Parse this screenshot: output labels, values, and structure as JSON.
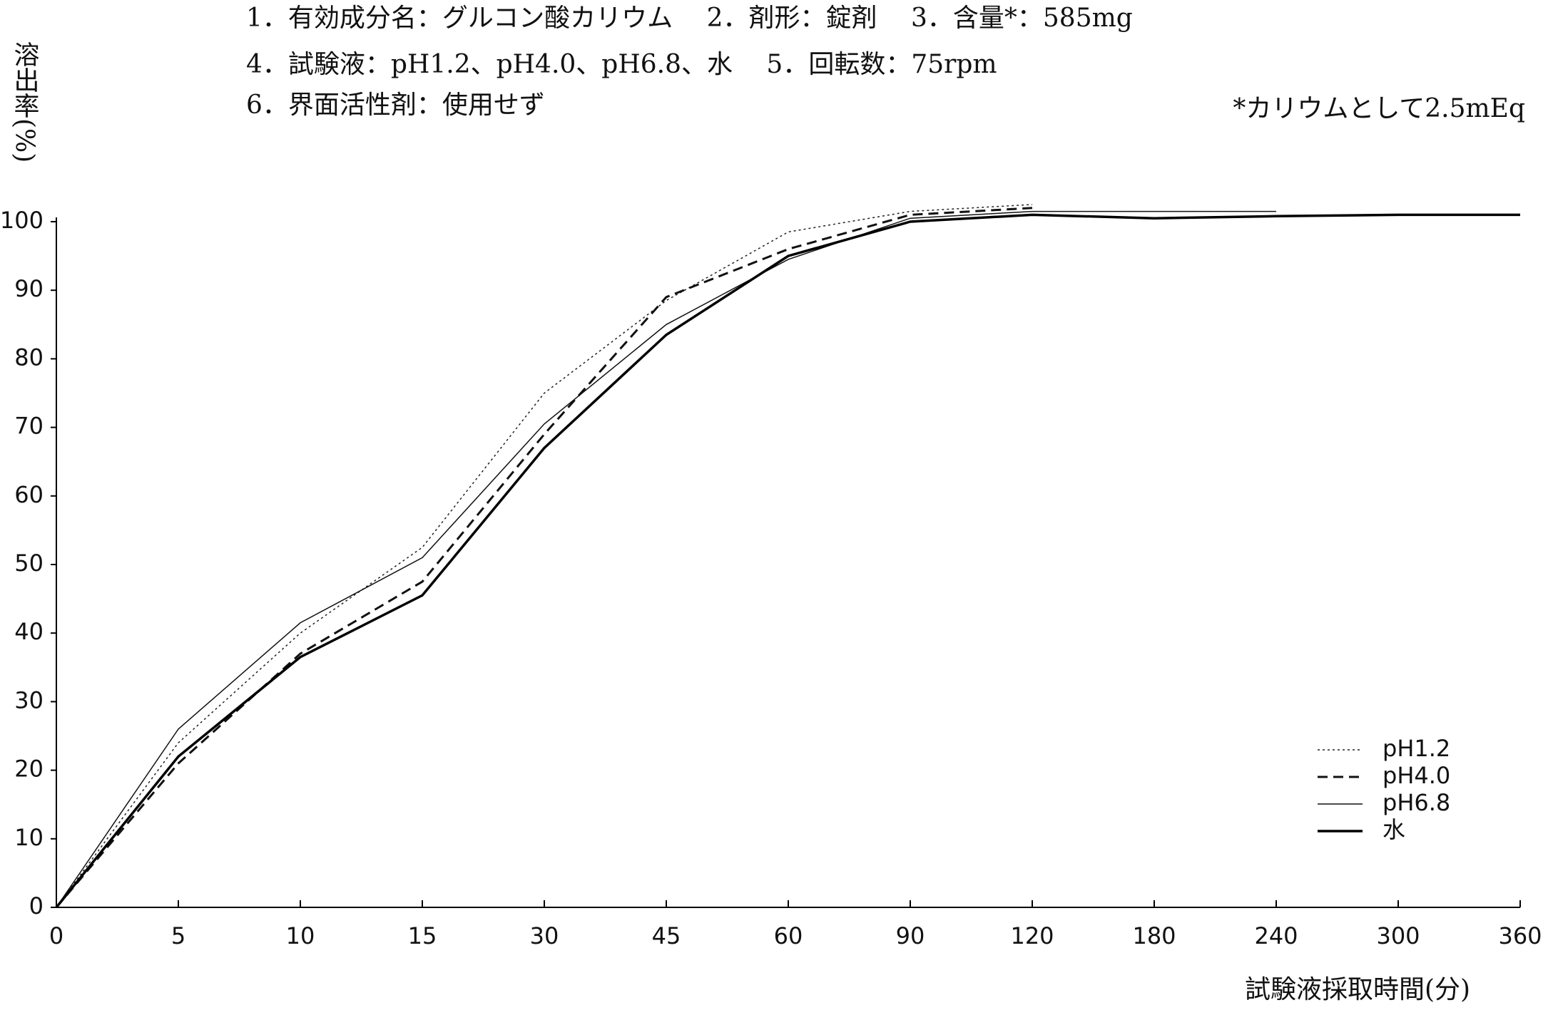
{
  "chart_data": {
    "type": "line",
    "header_lines": [
      "1．有効成分名：グルコン酸カリウム　 2．剤形：錠剤　 3．含量*：585mg",
      "4．試験液：pH1.2、pH4.0、pH6.8、水　 5．回転数：75rpm",
      "6．界面活性剤：使用せず"
    ],
    "annotation": "*カリウムとして2.5mEq",
    "y_label": "溶出率(%)",
    "x_label": "試験液採取時間(分)",
    "categories": [
      "0",
      "5",
      "10",
      "15",
      "30",
      "45",
      "60",
      "90",
      "120",
      "180",
      "240",
      "300",
      "360"
    ],
    "series": [
      {
        "name": "pH1.2",
        "color": "#222222",
        "style": "dotted",
        "width": 1.5,
        "values": [
          0,
          24,
          40,
          52.5,
          75,
          88.5,
          98.5,
          101.5,
          102.5,
          null,
          null,
          null,
          null
        ]
      },
      {
        "name": "pH4.0",
        "color": "#111111",
        "style": "dashed",
        "width": 3,
        "values": [
          0,
          21,
          37,
          47.5,
          69,
          89,
          96,
          101,
          102,
          null,
          null,
          null,
          null
        ]
      },
      {
        "name": "pH6.8",
        "color": "#111111",
        "style": "solid",
        "width": 1.5,
        "values": [
          0,
          26,
          41.5,
          51,
          70.5,
          85,
          94.5,
          100.5,
          101.5,
          101.5,
          101.5,
          null,
          null
        ]
      },
      {
        "name": "水",
        "color": "#000000",
        "style": "solid",
        "width": 3.5,
        "values": [
          0,
          22,
          36.5,
          45.5,
          67,
          83.5,
          95,
          100,
          101,
          100.5,
          100.8,
          101,
          101
        ]
      }
    ],
    "ylim": [
      0,
      100
    ],
    "yticks": [
      0,
      10,
      20,
      30,
      40,
      50,
      60,
      70,
      80,
      90,
      100
    ],
    "grid": false,
    "legend": "lower right"
  }
}
